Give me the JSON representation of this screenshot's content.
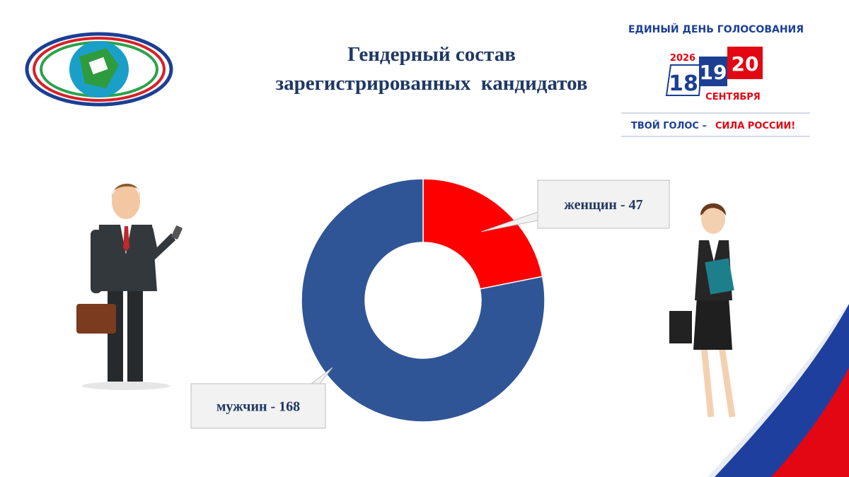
{
  "chart_data": {
    "type": "donut",
    "title": [
      "Гендерный состав",
      "зарегистрированных  кандидатов"
    ],
    "values": [
      47,
      168
    ],
    "value_labels": [
      "женщин - 47",
      "мужчин - 168"
    ],
    "colors": [
      "#ff0000",
      "#2f5597"
    ]
  },
  "branding": {
    "headline": "ЕДИНЫЙ ДЕНЬ ГОЛОСОВАНИЯ",
    "year": "2026",
    "days": [
      "18",
      "19",
      "20"
    ],
    "month": "СЕНТЯБРЯ",
    "slogan_part1": "ТВОЙ ГОЛОС –",
    "slogan_part2": "СИЛА РОССИИ!"
  }
}
